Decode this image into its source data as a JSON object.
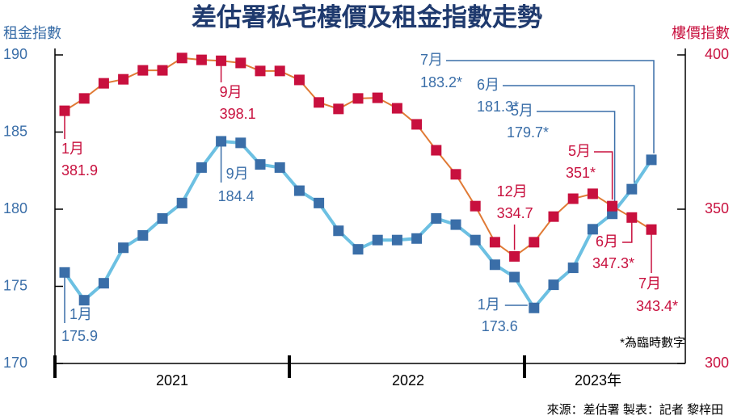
{
  "chart_data": {
    "type": "line",
    "title": "差估署私宅樓價及租金指數走勢",
    "ylabel": "租金指數",
    "y2label": "樓價指數",
    "ylim": [
      170,
      190
    ],
    "yticks": [
      170,
      175,
      180,
      185,
      190
    ],
    "y2lim": [
      300,
      400
    ],
    "y2ticks": [
      300,
      350,
      400
    ],
    "categories": [
      null,
      null,
      null,
      null,
      null,
      null,
      null,
      null,
      null,
      null,
      null,
      null,
      null,
      null,
      null,
      null,
      null,
      null,
      null,
      null,
      null,
      null,
      null,
      null,
      null,
      null,
      null,
      null,
      null,
      null,
      null
    ],
    "year_labels": [
      "2021",
      "2022",
      "2023年"
    ],
    "series": [
      {
        "name": "租金指數",
        "color": "#3a6ea8",
        "line_color": "#6cc0e2",
        "values": [
          175.9,
          174.1,
          175.2,
          177.5,
          178.3,
          179.4,
          180.4,
          182.7,
          184.4,
          184.3,
          182.9,
          182.7,
          181.2,
          180.4,
          178.6,
          177.4,
          178.0,
          178.0,
          178.1,
          179.4,
          179.0,
          178.0,
          176.4,
          175.6,
          173.6,
          175.1,
          176.2,
          178.7,
          179.7,
          181.3,
          183.2
        ],
        "point_labels": [
          "1月",
          null,
          null,
          null,
          null,
          null,
          null,
          null,
          "9月",
          null,
          null,
          null,
          null,
          null,
          null,
          null,
          null,
          null,
          null,
          null,
          null,
          null,
          null,
          null,
          "1月",
          null,
          null,
          null,
          "5月",
          "6月",
          "7月"
        ],
        "value_labels": [
          "175.9",
          null,
          null,
          null,
          null,
          null,
          null,
          null,
          "184.4",
          null,
          null,
          null,
          null,
          null,
          null,
          null,
          null,
          null,
          null,
          null,
          null,
          null,
          null,
          null,
          "173.6",
          null,
          null,
          null,
          "179.7*",
          "181.3*",
          "183.2*"
        ]
      },
      {
        "name": "樓價指數",
        "color": "#c8103e",
        "line_color": "#e07a35",
        "axis": "y2",
        "values": [
          381.9,
          385.9,
          390.8,
          392.1,
          395.0,
          395.0,
          399.0,
          398.4,
          398.1,
          397.4,
          394.8,
          394.8,
          391.9,
          384.6,
          382.5,
          385.9,
          386.1,
          382.7,
          377.5,
          369.1,
          361.3,
          351.0,
          339.3,
          334.7,
          339.3,
          347.6,
          353.4,
          355.0,
          351,
          347.3,
          343.4
        ],
        "point_labels": [
          "1月",
          null,
          null,
          null,
          null,
          null,
          null,
          null,
          "9月",
          null,
          null,
          null,
          null,
          null,
          null,
          null,
          null,
          null,
          null,
          null,
          null,
          null,
          null,
          "12月",
          null,
          null,
          null,
          null,
          "5月",
          "6月",
          "7月"
        ],
        "value_labels": [
          "381.9",
          null,
          null,
          null,
          null,
          null,
          null,
          null,
          "398.1",
          null,
          null,
          null,
          null,
          null,
          null,
          null,
          null,
          null,
          null,
          null,
          null,
          null,
          null,
          "334.7",
          null,
          null,
          null,
          null,
          "351*",
          "347.3*",
          "343.4*"
        ]
      }
    ],
    "footnote": "*為臨時數字",
    "source": "來源：差估署  製表：記者  黎梓田"
  }
}
